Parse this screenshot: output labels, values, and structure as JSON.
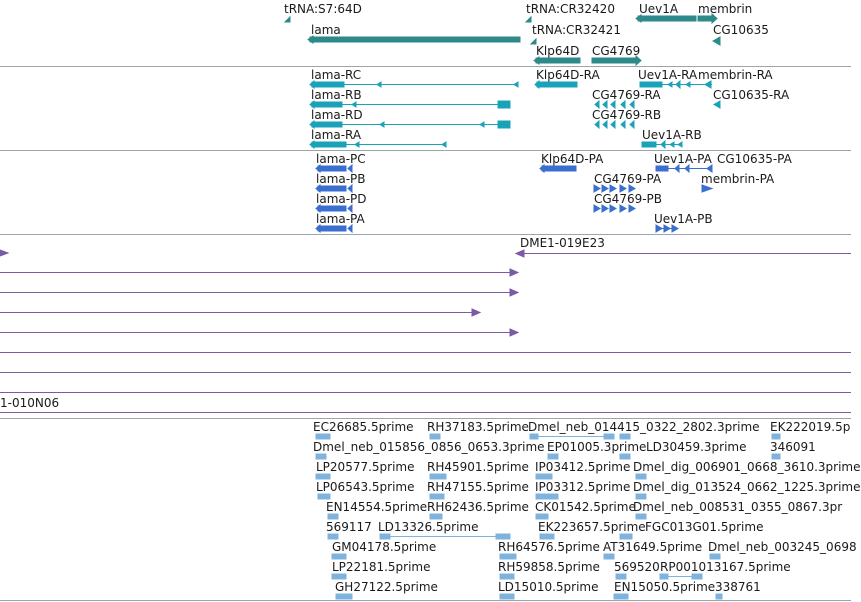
{
  "colors": {
    "gene": "#2e8a8a",
    "transcript": "#1aa3b8",
    "protein": "#3a6fcf",
    "clone": "#7b5aa6",
    "est": "#7fb3dd",
    "separator": "#9aa6ae"
  },
  "gene_track": {
    "labels": [
      "tRNA:S7:64D",
      "tRNA:CR32420",
      "Uev1A",
      "membrin",
      "lama",
      "tRNA:CR32421",
      "CG10635",
      "Klp64D",
      "CG4769"
    ]
  },
  "transcript_track": {
    "labels": [
      "lama-RC",
      "Klp64D-RA",
      "Uev1A-RA",
      "membrin-RA",
      "lama-RB",
      "CG4769-RA",
      "CG10635-RA",
      "lama-RD",
      "CG4769-RB",
      "lama-RA",
      "Uev1A-RB"
    ]
  },
  "protein_track": {
    "labels": [
      "lama-PC",
      "Klp64D-PA",
      "Uev1A-PA",
      "CG10635-PA",
      "lama-PB",
      "CG4769-PA",
      "membrin-PA",
      "lama-PD",
      "CG4769-PB",
      "lama-PA",
      "Uev1A-PB"
    ]
  },
  "clone_track": {
    "labels": [
      "DME1-019E23",
      "1-010N06"
    ]
  },
  "est_track": {
    "labels": [
      "EC26685.5prime",
      "RH37183.5prime",
      "Dmel_neb_014415_0322_2802.3prime",
      "EK222019.5p",
      "Dmel_neb_015856_0856_0653.3prime",
      "EP01005.3prime",
      "LD30459.3prime",
      "346091",
      "LP20577.5prime",
      "RH45901.5prime",
      "IP03412.5prime",
      "Dmel_dig_006901_0668_3610.3prime",
      "LP06543.5prime",
      "RH47155.5prime",
      "IP03312.5prime",
      "Dmel_dig_013524_0662_1225.3prime",
      "EN14554.5prime",
      "RH62436.5prime",
      "CK01542.5prime",
      "Dmel_neb_008531_0355_0867.3pr",
      "569117",
      "LD13326.5prime",
      "EK223657.5prime",
      "FGC013G01.5prime",
      "GM04178.5prime",
      "RH64576.5prime",
      "AT31649.5prime",
      "Dmel_neb_003245_0698",
      "LP22181.5prime",
      "RH59858.5prime",
      "569520",
      "RP001013167.5prime",
      "GH27122.5prime",
      "LD15010.5prime",
      "EN15050.5prime",
      "338761"
    ]
  }
}
